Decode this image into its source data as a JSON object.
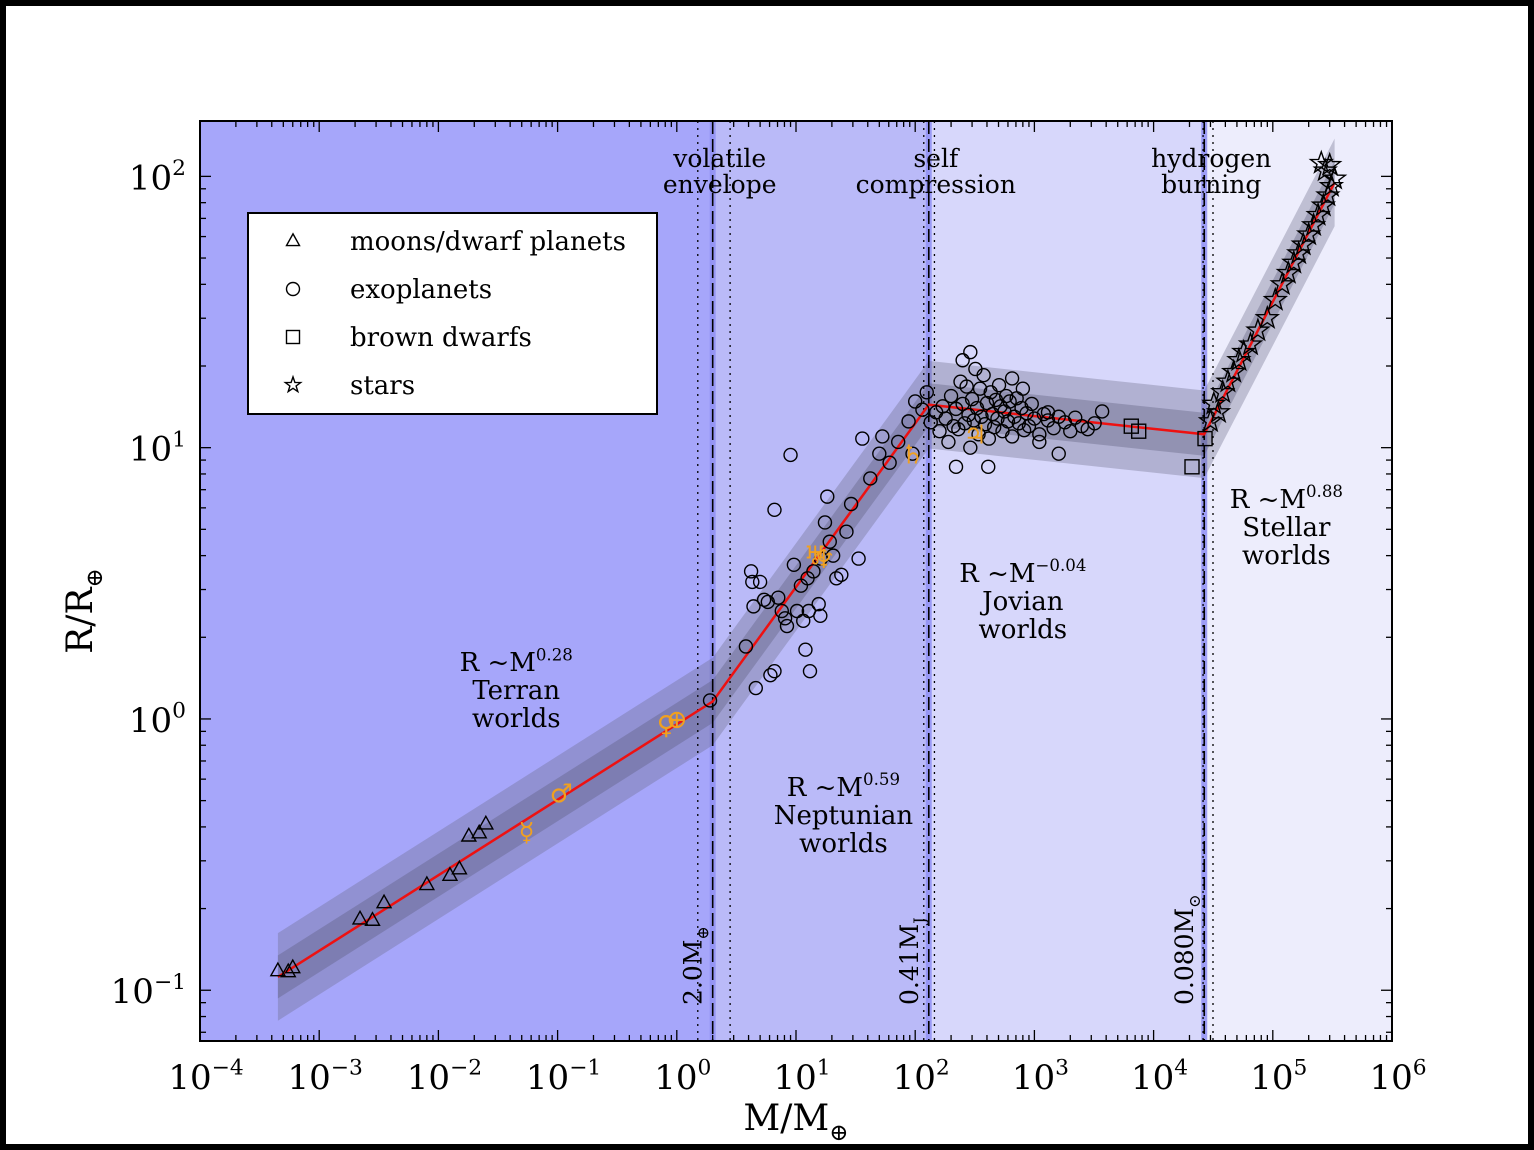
{
  "chart_data": {
    "type": "scatter",
    "title": "",
    "xlabel": "M/M",
    "xlabel_sub": "⊕",
    "ylabel": "R/R",
    "ylabel_sub": "⊕",
    "x_scale": "log",
    "y_scale": "log",
    "xlim": [
      0.0001,
      1000000
    ],
    "ylim": [
      0.065,
      160
    ],
    "x_ticks": [
      {
        "value": 0.0001,
        "base": "10",
        "exp": "−4"
      },
      {
        "value": 0.001,
        "base": "10",
        "exp": "−3"
      },
      {
        "value": 0.01,
        "base": "10",
        "exp": "−2"
      },
      {
        "value": 0.1,
        "base": "10",
        "exp": "−1"
      },
      {
        "value": 1,
        "base": "10",
        "exp": "0"
      },
      {
        "value": 10,
        "base": "10",
        "exp": "1"
      },
      {
        "value": 100,
        "base": "10",
        "exp": "2"
      },
      {
        "value": 1000,
        "base": "10",
        "exp": "3"
      },
      {
        "value": 10000,
        "base": "10",
        "exp": "4"
      },
      {
        "value": 100000,
        "base": "10",
        "exp": "5"
      },
      {
        "value": 1000000,
        "base": "10",
        "exp": "6"
      }
    ],
    "y_ticks": [
      {
        "value": 0.1,
        "base": "10",
        "exp": "−1"
      },
      {
        "value": 1,
        "base": "10",
        "exp": "0"
      },
      {
        "value": 10,
        "base": "10",
        "exp": "1"
      },
      {
        "value": 100,
        "base": "10",
        "exp": "2"
      }
    ],
    "region_colors": [
      "#a6a6fa",
      "#babaf8",
      "#d7d7fb",
      "#ededfc"
    ],
    "transition_band_color": "#8f8ff3",
    "fit_color": "#ee1111",
    "solar_system_color": "#f0a020",
    "regions": [
      {
        "x_end": 2.0,
        "label_main": "R",
        "label_exp": "0.28",
        "label_name": "Terran",
        "label_kind": "worlds",
        "lx": 0.045,
        "ly": 1.5
      },
      {
        "x_end": 130,
        "label_main": "R",
        "label_exp": "0.59",
        "label_name": "Neptunian",
        "label_kind": "worlds",
        "lx": 25,
        "ly": 0.52
      },
      {
        "x_end": 26600,
        "label_main": "R",
        "label_exp": "−0.04",
        "label_name": "Jovian",
        "label_kind": "worlds",
        "lx": 800,
        "ly": 3.2
      },
      {
        "x_end": 1000000,
        "label_main": "R",
        "label_exp": "0.88",
        "label_name": "Stellar",
        "label_kind": "worlds",
        "lx": 130000,
        "ly": 6.0
      }
    ],
    "transitions": [
      {
        "x": 2.0,
        "x_lo": 1.5,
        "x_hi": 2.8,
        "top1": "volatile",
        "top2": "envelope",
        "mass_label": "2.0M",
        "mass_sub": "⊕"
      },
      {
        "x": 130,
        "x_lo": 118,
        "x_hi": 145,
        "top1": "self",
        "top2": "compression",
        "mass_label": "0.41M",
        "mass_sub": "J"
      },
      {
        "x": 26600,
        "x_lo": 26000,
        "x_hi": 31500,
        "top1": "hydrogen",
        "top2": "burning",
        "mass_label": "0.080M",
        "mass_sub": "⊙"
      }
    ],
    "fit_line": [
      [
        0.00045,
        0.112
      ],
      [
        2.0,
        1.16
      ],
      [
        130,
        14.4
      ],
      [
        26600,
        11.2
      ],
      [
        330000,
        95
      ]
    ],
    "legend": {
      "position": "upper-left",
      "entries": [
        {
          "marker": "triangle",
          "label": "moons/dwarf planets"
        },
        {
          "marker": "circle",
          "label": "exoplanets"
        },
        {
          "marker": "square",
          "label": "brown dwarfs"
        },
        {
          "marker": "star",
          "label": "stars"
        }
      ]
    },
    "series": [
      {
        "marker": "triangle",
        "points": [
          [
            0.00045,
            0.118
          ],
          [
            0.00055,
            0.117
          ],
          [
            0.0006,
            0.121
          ],
          [
            0.0022,
            0.183
          ],
          [
            0.0028,
            0.181
          ],
          [
            0.0035,
            0.21
          ],
          [
            0.008,
            0.245
          ],
          [
            0.0125,
            0.265
          ],
          [
            0.015,
            0.28
          ],
          [
            0.018,
            0.37
          ],
          [
            0.022,
            0.38
          ],
          [
            0.025,
            0.41
          ]
        ]
      },
      {
        "marker": "circle",
        "points": [
          [
            1.9,
            1.17
          ],
          [
            3.8,
            1.85
          ],
          [
            4.2,
            3.5
          ],
          [
            4.3,
            3.2
          ],
          [
            4.6,
            1.3
          ],
          [
            4.4,
            2.6
          ],
          [
            5,
            3.2
          ],
          [
            5.4,
            2.75
          ],
          [
            5.8,
            2.7
          ],
          [
            6.1,
            1.45
          ],
          [
            6.6,
            1.5
          ],
          [
            7.1,
            2.8
          ],
          [
            7.6,
            2.5
          ],
          [
            8.1,
            2.35
          ],
          [
            8.4,
            2.2
          ],
          [
            9,
            9.4
          ],
          [
            6.6,
            5.9
          ],
          [
            9.6,
            3.7
          ],
          [
            10.2,
            2.5
          ],
          [
            11,
            3.1
          ],
          [
            11.5,
            2.3
          ],
          [
            12,
            1.8
          ],
          [
            12.5,
            3.3
          ],
          [
            12.8,
            2.5
          ],
          [
            13.1,
            1.5
          ],
          [
            14,
            3.5
          ],
          [
            15.5,
            2.65
          ],
          [
            16,
            2.4
          ],
          [
            16.2,
            3.9
          ],
          [
            17.5,
            5.3
          ],
          [
            18.3,
            6.6
          ],
          [
            19.2,
            4.5
          ],
          [
            20.5,
            4.0
          ],
          [
            21.8,
            3.3
          ],
          [
            24,
            3.4
          ],
          [
            26.5,
            4.9
          ],
          [
            29,
            6.2
          ],
          [
            33.5,
            3.9
          ],
          [
            36,
            10.8
          ],
          [
            42,
            7.7
          ],
          [
            50,
            9.5
          ],
          [
            53,
            11.0
          ],
          [
            61,
            8.8
          ],
          [
            72,
            10.5
          ],
          [
            88,
            12.5
          ],
          [
            95,
            9.5
          ],
          [
            100,
            14.8
          ],
          [
            115,
            13.8
          ],
          [
            125,
            16.0
          ],
          [
            135,
            12.4
          ],
          [
            150,
            13.5
          ],
          [
            160,
            11.5
          ],
          [
            170,
            14.2
          ],
          [
            180,
            12.8
          ],
          [
            190,
            10.5
          ],
          [
            200,
            15.5
          ],
          [
            210,
            12.0
          ],
          [
            220,
            13.9
          ],
          [
            230,
            11.7
          ],
          [
            240,
            17.5
          ],
          [
            250,
            14.5
          ],
          [
            260,
            12.3
          ],
          [
            270,
            16.8
          ],
          [
            280,
            13.2
          ],
          [
            290,
            10.0
          ],
          [
            300,
            15.1
          ],
          [
            310,
            12.6
          ],
          [
            320,
            19.5
          ],
          [
            330,
            14.0
          ],
          [
            340,
            11.2
          ],
          [
            350,
            16.5
          ],
          [
            360,
            13.0
          ],
          [
            375,
            18.5
          ],
          [
            385,
            12.2
          ],
          [
            400,
            14.6
          ],
          [
            415,
            10.8
          ],
          [
            430,
            16.0
          ],
          [
            445,
            13.3
          ],
          [
            460,
            11.9
          ],
          [
            475,
            15.0
          ],
          [
            490,
            12.8
          ],
          [
            505,
            17.0
          ],
          [
            520,
            14.2
          ],
          [
            540,
            11.5
          ],
          [
            560,
            13.6
          ],
          [
            580,
            15.5
          ],
          [
            600,
            12.5
          ],
          [
            620,
            14.8
          ],
          [
            650,
            11.0
          ],
          [
            680,
            13.0
          ],
          [
            710,
            15.2
          ],
          [
            740,
            12.3
          ],
          [
            780,
            14.0
          ],
          [
            820,
            11.6
          ],
          [
            860,
            13.4
          ],
          [
            900,
            12.0
          ],
          [
            950,
            14.5
          ],
          [
            1000,
            12.8
          ],
          [
            1100,
            11.2
          ],
          [
            1200,
            13.3
          ],
          [
            1300,
            12.6
          ],
          [
            1450,
            11.8
          ],
          [
            1600,
            13.0
          ],
          [
            1800,
            12.4
          ],
          [
            2000,
            11.5
          ],
          [
            2200,
            12.9
          ],
          [
            2500,
            12.0
          ],
          [
            2800,
            11.7
          ],
          [
            3200,
            12.3
          ],
          [
            3700,
            13.6
          ],
          [
            250,
            21.0
          ],
          [
            290,
            22.5
          ],
          [
            220,
            8.5
          ],
          [
            410,
            8.5
          ],
          [
            1600,
            9.5
          ],
          [
            1100,
            10.5
          ],
          [
            1300,
            13.5
          ],
          [
            800,
            16.5
          ],
          [
            650,
            18.0
          ]
        ]
      },
      {
        "marker": "square",
        "points": [
          [
            6500,
            12.0
          ],
          [
            7500,
            11.5
          ],
          [
            21000,
            8.5
          ],
          [
            27000,
            10.8
          ]
        ]
      },
      {
        "marker": "star",
        "points": [
          [
            30000,
            12.5
          ],
          [
            32000,
            14.5
          ],
          [
            35000,
            13.5
          ],
          [
            38000,
            16.0
          ],
          [
            42000,
            17.5
          ],
          [
            47000,
            19.0
          ],
          [
            52000,
            21.0
          ],
          [
            57000,
            22.5
          ],
          [
            65000,
            24.0
          ],
          [
            75000,
            27.0
          ],
          [
            90000,
            30.0
          ],
          [
            105000,
            35.0
          ],
          [
            120000,
            40.0
          ],
          [
            135000,
            44.0
          ],
          [
            150000,
            48.0
          ],
          [
            165000,
            52.0
          ],
          [
            180000,
            56.0
          ],
          [
            200000,
            61.0
          ],
          [
            220000,
            66.0
          ],
          [
            240000,
            72.0
          ],
          [
            265000,
            78.0
          ],
          [
            290000,
            85.0
          ],
          [
            310000,
            92.0
          ],
          [
            330000,
            98.0
          ],
          [
            275000,
            105.0
          ],
          [
            300000,
            110.0
          ],
          [
            255000,
            112.0
          ]
        ]
      }
    ],
    "solar_system": [
      {
        "symbol": "☿",
        "x": 0.055,
        "y": 0.383
      },
      {
        "symbol": "♂",
        "x": 0.107,
        "y": 0.532
      },
      {
        "symbol": "♀",
        "x": 0.815,
        "y": 0.95
      },
      {
        "symbol": "⊕",
        "x": 1.0,
        "y": 1.0
      },
      {
        "symbol": "♅",
        "x": 14.5,
        "y": 4.01
      },
      {
        "symbol": "♆",
        "x": 17.1,
        "y": 3.88
      },
      {
        "symbol": "♄",
        "x": 95,
        "y": 9.45
      },
      {
        "symbol": "♃",
        "x": 318,
        "y": 11.2
      }
    ]
  }
}
